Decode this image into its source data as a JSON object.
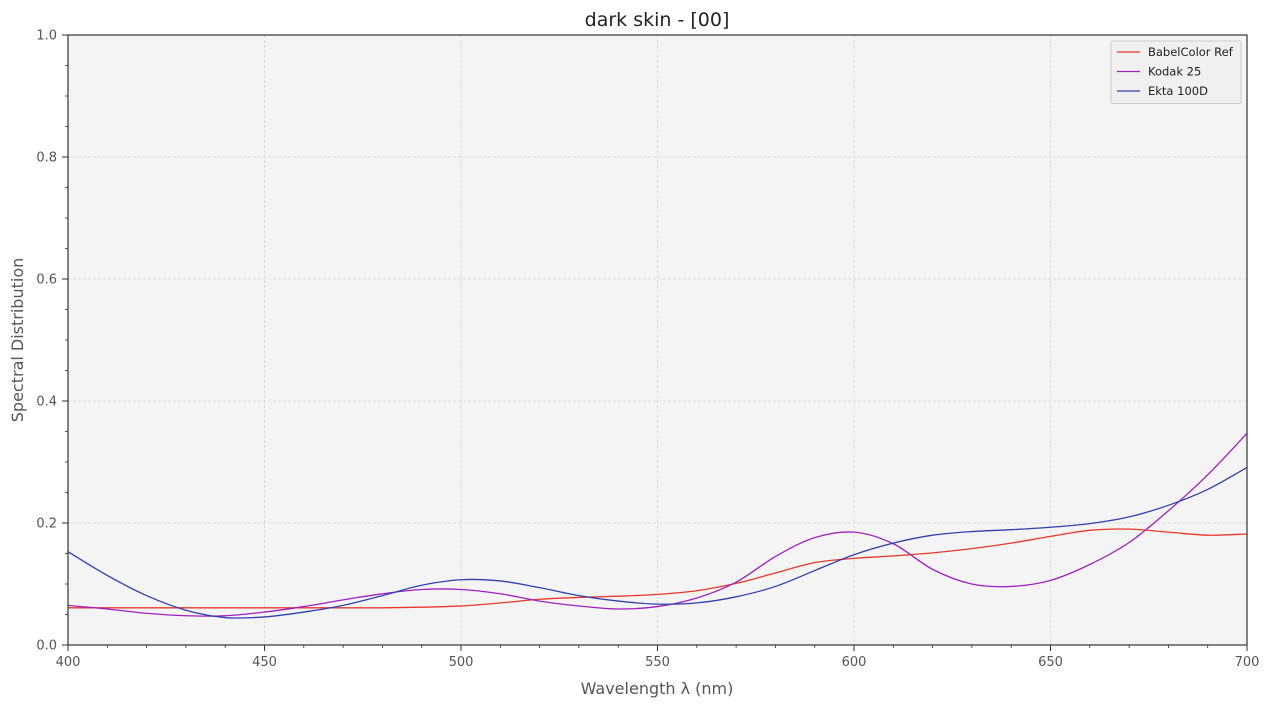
{
  "chart_data": {
    "type": "line",
    "title": "dark skin - [00]",
    "xlabel": "Wavelength λ (nm)",
    "ylabel": "Spectral Distribution",
    "xlim": [
      400,
      700
    ],
    "ylim": [
      0,
      1
    ],
    "x_ticks": [
      "400",
      "450",
      "500",
      "550",
      "600",
      "650",
      "700"
    ],
    "y_ticks": [
      "0.0",
      "0.2",
      "0.4",
      "0.6",
      "0.8",
      "1.0"
    ],
    "grid": true,
    "legend_position": "top-right",
    "x": [
      400,
      410,
      420,
      430,
      440,
      450,
      460,
      470,
      480,
      490,
      500,
      510,
      520,
      530,
      540,
      550,
      560,
      570,
      580,
      590,
      600,
      610,
      620,
      630,
      640,
      650,
      660,
      670,
      680,
      690,
      700
    ],
    "series": [
      {
        "name": "BabelColor Ref",
        "color": "#e8392b",
        "values": [
          0.061,
          0.061,
          0.061,
          0.061,
          0.061,
          0.061,
          0.061,
          0.061,
          0.061,
          0.062,
          0.064,
          0.069,
          0.075,
          0.078,
          0.08,
          0.083,
          0.089,
          0.101,
          0.118,
          0.135,
          0.142,
          0.146,
          0.151,
          0.158,
          0.167,
          0.178,
          0.188,
          0.19,
          0.185,
          0.18,
          0.182
        ]
      },
      {
        "name": "Kodak 25",
        "color": "#a020c0",
        "values": [
          0.065,
          0.059,
          0.052,
          0.048,
          0.048,
          0.054,
          0.063,
          0.074,
          0.084,
          0.091,
          0.091,
          0.084,
          0.072,
          0.064,
          0.059,
          0.063,
          0.077,
          0.103,
          0.145,
          0.176,
          0.185,
          0.166,
          0.124,
          0.1,
          0.096,
          0.106,
          0.132,
          0.168,
          0.22,
          0.279,
          0.347
        ]
      },
      {
        "name": "Ekta 100D",
        "color": "#3040b0",
        "values": [
          0.153,
          0.114,
          0.081,
          0.057,
          0.045,
          0.046,
          0.054,
          0.065,
          0.081,
          0.098,
          0.107,
          0.105,
          0.094,
          0.081,
          0.072,
          0.067,
          0.069,
          0.079,
          0.096,
          0.122,
          0.148,
          0.167,
          0.18,
          0.186,
          0.189,
          0.193,
          0.199,
          0.21,
          0.229,
          0.255,
          0.291
        ]
      }
    ]
  }
}
